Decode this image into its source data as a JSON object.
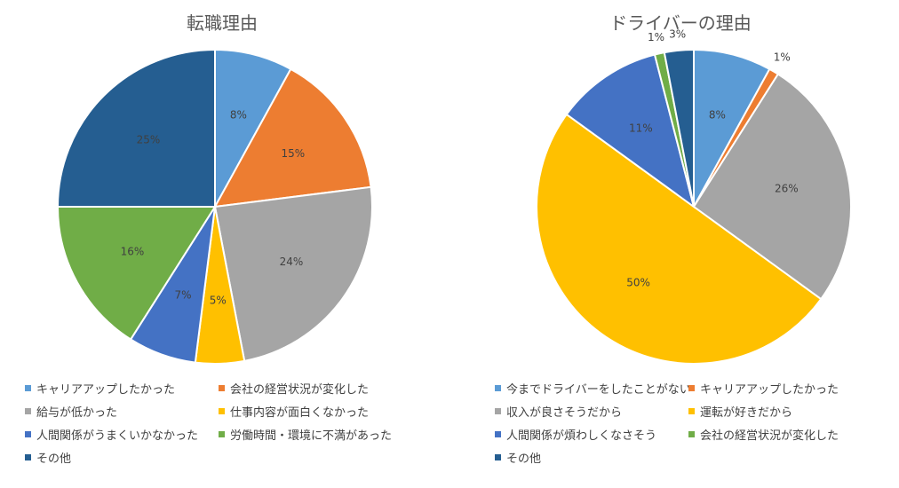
{
  "chart_data": [
    {
      "type": "pie",
      "title": "転職理由",
      "series": [
        {
          "name": "キャリアアップしたかった",
          "value": 8,
          "label": "8%",
          "color": "#5b9bd5"
        },
        {
          "name": "会社の経営状況が変化した",
          "value": 15,
          "label": "15%",
          "color": "#ed7d31"
        },
        {
          "name": "給与が低かった",
          "value": 24,
          "label": "24%",
          "color": "#a5a5a5"
        },
        {
          "name": "仕事内容が面白くなかった",
          "value": 5,
          "label": "5%",
          "color": "#ffc000"
        },
        {
          "name": "人間関係がうまくいかなかった",
          "value": 7,
          "label": "7%",
          "color": "#4472c4"
        },
        {
          "name": "労働時間・環境に不満があった",
          "value": 16,
          "label": "16%",
          "color": "#70ad47"
        },
        {
          "name": "その他",
          "value": 25,
          "label": "25%",
          "color": "#255e91"
        }
      ],
      "legend_position": "bottom"
    },
    {
      "type": "pie",
      "title": "ドライバーの理由",
      "series": [
        {
          "name": "今までドライバーをしたことがない",
          "value": 8,
          "label": "8%",
          "color": "#5b9bd5"
        },
        {
          "name": "キャリアアップしたかった",
          "value": 1,
          "label": "1%",
          "color": "#ed7d31"
        },
        {
          "name": "収入が良さそうだから",
          "value": 26,
          "label": "26%",
          "color": "#a5a5a5"
        },
        {
          "name": "運転が好きだから",
          "value": 50,
          "label": "50%",
          "color": "#ffc000"
        },
        {
          "name": "人間関係が煩わしくなさそう",
          "value": 11,
          "label": "11%",
          "color": "#4472c4"
        },
        {
          "name": "会社の経営状況が変化した",
          "value": 1,
          "label": "1%",
          "color": "#70ad47"
        },
        {
          "name": "その他",
          "value": 3,
          "label": "3%",
          "color": "#255e91"
        }
      ],
      "legend_position": "bottom"
    }
  ]
}
